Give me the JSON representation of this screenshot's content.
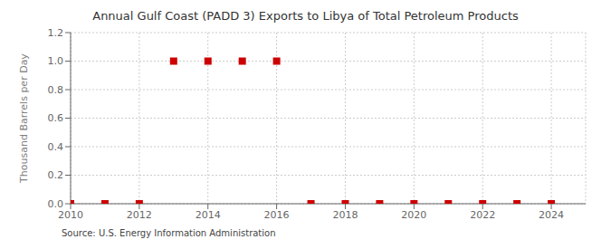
{
  "chart_data": {
    "type": "scatter",
    "title": "Annual Gulf Coast (PADD 3) Exports to Libya of Total Petroleum Products",
    "ylabel": "Thousand Barrels per Day",
    "annotations": [
      "Source: U.S. Energy Information Administration"
    ],
    "x": [
      2010,
      2011,
      2012,
      2013,
      2014,
      2015,
      2016,
      2017,
      2018,
      2019,
      2020,
      2021,
      2022,
      2023,
      2024
    ],
    "values": [
      0,
      0,
      0,
      1.0,
      1.0,
      1.0,
      1.0,
      0,
      0,
      0,
      0,
      0,
      0,
      0,
      0
    ],
    "color": "#cc0000",
    "marker": "square",
    "xlim": [
      2010,
      2025
    ],
    "ylim": [
      0.0,
      1.2
    ],
    "xticks": [
      2010,
      2012,
      2014,
      2016,
      2018,
      2020,
      2022,
      2024
    ],
    "yticks": [
      {
        "value": 0.0,
        "label": "0.0"
      },
      0.2,
      0.4,
      0.6,
      0.8,
      {
        "value": 1.0,
        "label": "1.0"
      },
      1.2
    ],
    "grid": true
  }
}
